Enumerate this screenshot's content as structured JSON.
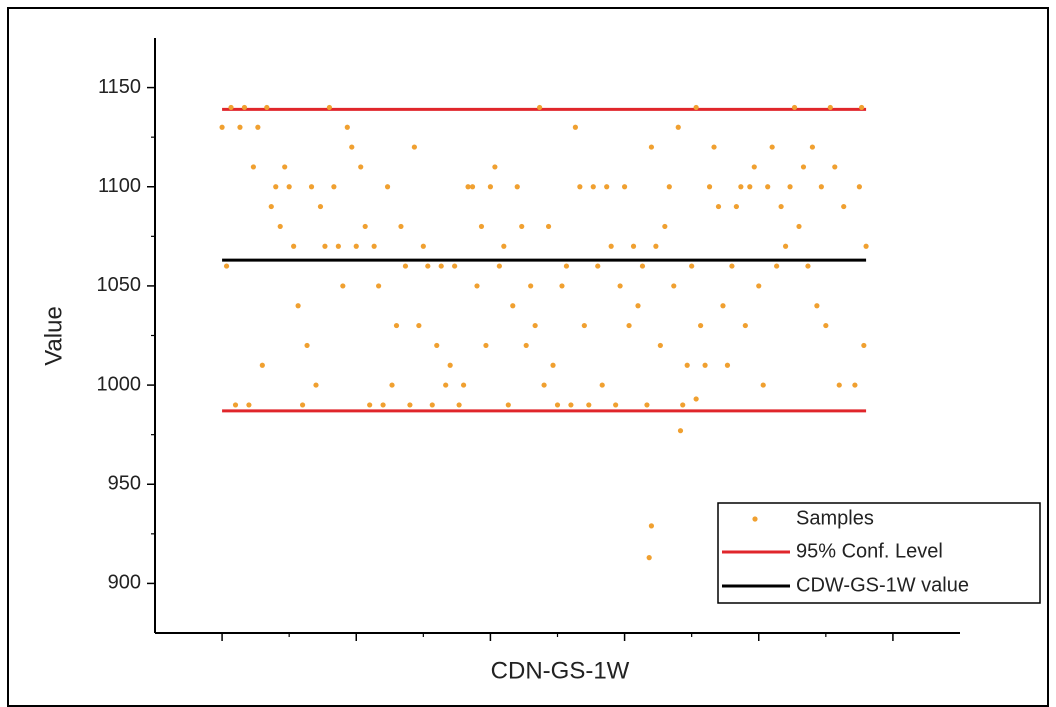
{
  "chart_data": {
    "type": "scatter",
    "xlabel": "CDN-GS-1W",
    "ylabel": "Value",
    "xlim": [
      -30,
      330
    ],
    "xticks": [
      0,
      60,
      120,
      180,
      240,
      300
    ],
    "ylim": [
      875,
      1175
    ],
    "yticks": [
      900,
      950,
      1000,
      1050,
      1100,
      1150
    ],
    "legend": "lower right",
    "series": [
      {
        "name": "Samples",
        "color": "#f0a030",
        "x": [
          0,
          2,
          4,
          6,
          8,
          10,
          12,
          14,
          16,
          18,
          20,
          22,
          24,
          26,
          28,
          30,
          32,
          34,
          36,
          38,
          40,
          42,
          44,
          46,
          48,
          50,
          52,
          54,
          56,
          58,
          60,
          62,
          64,
          66,
          68,
          70,
          72,
          74,
          76,
          78,
          80,
          82,
          84,
          86,
          88,
          90,
          92,
          94,
          96,
          98,
          100,
          102,
          104,
          106,
          108,
          110,
          112,
          114,
          116,
          118,
          120,
          122,
          124,
          126,
          128,
          130,
          132,
          134,
          136,
          138,
          140,
          142,
          144,
          146,
          148,
          150,
          152,
          154,
          156,
          158,
          160,
          162,
          164,
          166,
          168,
          170,
          172,
          174,
          176,
          178,
          180,
          182,
          184,
          186,
          188,
          190,
          192,
          194,
          196,
          198,
          200,
          202,
          204,
          206,
          208,
          210,
          212,
          214,
          216,
          218,
          220,
          222,
          224,
          226,
          228,
          230,
          232,
          234,
          236,
          238,
          240,
          242,
          244,
          246,
          248,
          250,
          252,
          254,
          256,
          258,
          260,
          262,
          264,
          266,
          268,
          270,
          272,
          274,
          276,
          278,
          191,
          192,
          205,
          212,
          283,
          285,
          287,
          288,
          286
        ],
        "values": [
          1130,
          1060,
          1140,
          990,
          1130,
          1140,
          990,
          1110,
          1130,
          1010,
          1140,
          1090,
          1100,
          1080,
          1110,
          1100,
          1070,
          1040,
          990,
          1020,
          1100,
          1000,
          1090,
          1070,
          1140,
          1100,
          1070,
          1050,
          1130,
          1120,
          1070,
          1110,
          1080,
          990,
          1070,
          1050,
          990,
          1100,
          1000,
          1030,
          1080,
          1060,
          990,
          1120,
          1030,
          1070,
          1060,
          990,
          1020,
          1060,
          1000,
          1010,
          1060,
          990,
          1000,
          1100,
          1100,
          1050,
          1080,
          1020,
          1100,
          1110,
          1060,
          1070,
          990,
          1040,
          1100,
          1080,
          1020,
          1050,
          1030,
          1140,
          1000,
          1080,
          1010,
          990,
          1050,
          1060,
          990,
          1130,
          1100,
          1030,
          990,
          1100,
          1060,
          1000,
          1100,
          1070,
          990,
          1050,
          1100,
          1030,
          1070,
          1040,
          1060,
          990,
          1120,
          1070,
          1020,
          1080,
          1100,
          1050,
          1130,
          990,
          1010,
          1060,
          1140,
          1030,
          1010,
          1100,
          1120,
          1090,
          1040,
          1010,
          1060,
          1090,
          1100,
          1030,
          1100,
          1110,
          1050,
          1000,
          1100,
          1120,
          1060,
          1090,
          1070,
          1100,
          1140,
          1080,
          1110,
          1060,
          1120,
          1040,
          1100,
          1030,
          1140,
          1110,
          1000,
          1090,
          913,
          929,
          977,
          993,
          1000,
          1100,
          1020,
          1070,
          1140
        ]
      }
    ],
    "lines": [
      {
        "name": "95% Conf. Level",
        "color": "#e0262b",
        "values": [
          987,
          1139
        ]
      },
      {
        "name": "CDW-GS-1W value",
        "color": "#000000",
        "values": [
          1063
        ]
      }
    ]
  }
}
